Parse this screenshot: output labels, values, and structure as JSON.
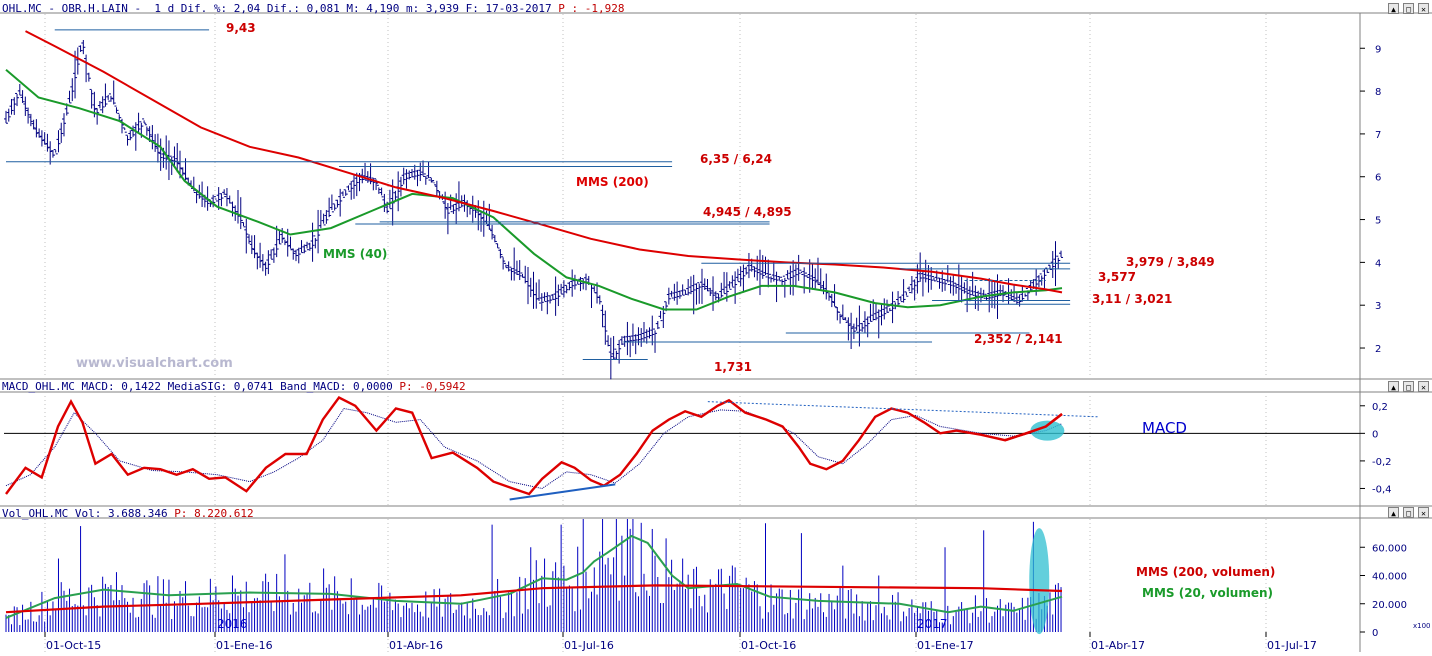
{
  "window": {
    "buttons": [
      "▲",
      "□",
      "✕"
    ]
  },
  "price_panel": {
    "header": {
      "prefix": "OHL.MC - OBR.H.LAIN -  1 d Dif. %: 2,04 Dif.: 0,081 M: 4,190 m: 3,939 F: 17-03-2017 ",
      "p_label": "P :",
      "p_value": "-1,928"
    },
    "watermark": "www.visualchart.com",
    "labels": {
      "high": "9,43",
      "r1": "6,35 / 6,24",
      "mms200": "MMS (200)",
      "r2": "4,945 / 4,895",
      "mms40": "MMS (40)",
      "r3": "3,979 / 3,849",
      "r4": "3,577",
      "r5": "3,11 / 3,021",
      "r6": "2,352 / 2,141",
      "low": "1,731"
    }
  },
  "macd_panel": {
    "header": {
      "prefix": "MACD_OHL.MC MACD: 0,1422 MediaSIG: 0,0741 Band_MACD: 0,0000 ",
      "p_label": "P:",
      "p_value": "-0,5942"
    },
    "title": "MACD"
  },
  "vol_panel": {
    "header": {
      "prefix": "Vol_OHL.MC Vol: 3.688.346 ",
      "p_label": "P:",
      "p_value": "8.220.612"
    },
    "mms200_label": "MMS (200, volumen)",
    "mms20_label": "MMS (20, volumen)",
    "multiplier": "x100",
    "year_labels": [
      "2016",
      "2017"
    ]
  },
  "colors": {
    "price_bars": "#000080",
    "mms200": "#dd0000",
    "mms40": "#1a9a2a",
    "levels": "#1f5fa0",
    "macd": "#dd0000",
    "signal": "#000080",
    "highlight": "#2fbfd0",
    "volume": "#0000c0"
  },
  "chart_data": [
    {
      "type": "line",
      "panel": "price",
      "y_ticks": [
        "9",
        "8",
        "7",
        "6",
        "5",
        "4",
        "3",
        "2"
      ],
      "ylim": [
        1.3,
        9.8
      ],
      "x_ticks": [
        "01-Oct-15",
        "01-Ene-16",
        "01-Abr-16",
        "01-Jul-16",
        "01-Oct-16",
        "01-Ene-17",
        "01-Abr-17",
        "01-Jul-17"
      ],
      "price_path": [
        [
          0,
          7.3
        ],
        [
          8,
          8.0
        ],
        [
          18,
          7.1
        ],
        [
          30,
          6.5
        ],
        [
          40,
          7.9
        ],
        [
          47,
          9.2
        ],
        [
          55,
          7.5
        ],
        [
          65,
          7.9
        ],
        [
          75,
          6.9
        ],
        [
          85,
          7.3
        ],
        [
          95,
          6.5
        ],
        [
          105,
          6.4
        ],
        [
          115,
          5.7
        ],
        [
          125,
          5.4
        ],
        [
          135,
          5.6
        ],
        [
          145,
          5.0
        ],
        [
          152,
          4.3
        ],
        [
          160,
          3.9
        ],
        [
          170,
          4.6
        ],
        [
          178,
          4.2
        ],
        [
          188,
          4.4
        ],
        [
          198,
          5.1
        ],
        [
          208,
          5.6
        ],
        [
          218,
          6.0
        ],
        [
          228,
          5.9
        ],
        [
          235,
          5.2
        ],
        [
          245,
          6.0
        ],
        [
          255,
          6.1
        ],
        [
          263,
          5.9
        ],
        [
          272,
          5.2
        ],
        [
          282,
          5.4
        ],
        [
          290,
          5.2
        ],
        [
          298,
          4.8
        ],
        [
          308,
          3.9
        ],
        [
          318,
          3.7
        ],
        [
          328,
          3.1
        ],
        [
          338,
          3.2
        ],
        [
          348,
          3.5
        ],
        [
          358,
          3.6
        ],
        [
          366,
          3.1
        ],
        [
          370,
          2.2
        ],
        [
          373,
          1.75
        ],
        [
          380,
          2.2
        ],
        [
          390,
          2.25
        ],
        [
          400,
          2.4
        ],
        [
          408,
          3.2
        ],
        [
          418,
          3.3
        ],
        [
          428,
          3.5
        ],
        [
          438,
          3.2
        ],
        [
          448,
          3.5
        ],
        [
          458,
          3.9
        ],
        [
          468,
          3.7
        ],
        [
          478,
          3.6
        ],
        [
          488,
          3.8
        ],
        [
          498,
          3.6
        ],
        [
          506,
          3.3
        ],
        [
          513,
          2.8
        ],
        [
          523,
          2.4
        ],
        [
          533,
          2.7
        ],
        [
          543,
          2.9
        ],
        [
          553,
          3.2
        ],
        [
          563,
          3.7
        ],
        [
          573,
          3.6
        ],
        [
          583,
          3.5
        ],
        [
          593,
          3.3
        ],
        [
          603,
          3.2
        ],
        [
          613,
          3.3
        ],
        [
          623,
          3.1
        ],
        [
          633,
          3.5
        ],
        [
          643,
          3.9
        ],
        [
          650,
          4.19
        ]
      ],
      "mms200": [
        [
          12,
          9.4
        ],
        [
          30,
          9.05
        ],
        [
          60,
          8.45
        ],
        [
          90,
          7.8
        ],
        [
          120,
          7.15
        ],
        [
          150,
          6.7
        ],
        [
          180,
          6.45
        ],
        [
          210,
          6.1
        ],
        [
          240,
          5.75
        ],
        [
          270,
          5.5
        ],
        [
          300,
          5.2
        ],
        [
          330,
          4.88
        ],
        [
          360,
          4.55
        ],
        [
          390,
          4.3
        ],
        [
          420,
          4.15
        ],
        [
          450,
          4.07
        ],
        [
          480,
          4.0
        ],
        [
          510,
          3.95
        ],
        [
          540,
          3.88
        ],
        [
          570,
          3.78
        ],
        [
          600,
          3.62
        ],
        [
          620,
          3.48
        ],
        [
          640,
          3.37
        ],
        [
          650,
          3.3
        ]
      ],
      "mms40": [
        [
          0,
          8.5
        ],
        [
          20,
          7.85
        ],
        [
          45,
          7.6
        ],
        [
          70,
          7.3
        ],
        [
          95,
          6.7
        ],
        [
          110,
          5.9
        ],
        [
          130,
          5.3
        ],
        [
          155,
          4.95
        ],
        [
          175,
          4.65
        ],
        [
          200,
          4.8
        ],
        [
          225,
          5.2
        ],
        [
          250,
          5.6
        ],
        [
          275,
          5.5
        ],
        [
          300,
          5.05
        ],
        [
          325,
          4.2
        ],
        [
          345,
          3.65
        ],
        [
          365,
          3.45
        ],
        [
          385,
          3.15
        ],
        [
          405,
          2.9
        ],
        [
          425,
          2.9
        ],
        [
          445,
          3.2
        ],
        [
          465,
          3.45
        ],
        [
          485,
          3.45
        ],
        [
          510,
          3.3
        ],
        [
          535,
          3.05
        ],
        [
          555,
          2.95
        ],
        [
          575,
          3.0
        ],
        [
          600,
          3.2
        ],
        [
          620,
          3.3
        ],
        [
          640,
          3.35
        ],
        [
          650,
          3.4
        ]
      ],
      "levels": [
        {
          "y": 9.43,
          "x0": 30,
          "x1": 125,
          "label_key": "high"
        },
        {
          "y": 6.35,
          "x0": 0,
          "x1": 410,
          "label_key": "r1"
        },
        {
          "y": 6.24,
          "x0": 205,
          "x1": 410
        },
        {
          "y": 4.945,
          "x0": 230,
          "x1": 470,
          "label_key": "r2"
        },
        {
          "y": 4.895,
          "x0": 215,
          "x1": 470
        },
        {
          "y": 3.979,
          "x0": 428,
          "x1": 655,
          "label_key": "r3"
        },
        {
          "y": 3.849,
          "x0": 550,
          "x1": 655
        },
        {
          "y": 3.577,
          "x0": 590,
          "x1": 640,
          "dashed": true,
          "label_key": "r4"
        },
        {
          "y": 3.11,
          "x0": 570,
          "x1": 655,
          "label_key": "r5"
        },
        {
          "y": 3.021,
          "x0": 590,
          "x1": 655
        },
        {
          "y": 2.352,
          "x0": 480,
          "x1": 630,
          "label_key": "r6"
        },
        {
          "y": 2.141,
          "x0": 380,
          "x1": 570
        },
        {
          "y": 1.731,
          "x0": 355,
          "x1": 395,
          "label_key": "low"
        }
      ]
    },
    {
      "type": "line",
      "panel": "macd",
      "y_ticks": [
        "0,2",
        "0",
        "-0,2",
        "-0,4"
      ],
      "ylim": [
        -0.52,
        0.3
      ],
      "macd": [
        [
          0,
          -0.44
        ],
        [
          12,
          -0.25
        ],
        [
          22,
          -0.32
        ],
        [
          32,
          0.05
        ],
        [
          40,
          0.23
        ],
        [
          47,
          0.08
        ],
        [
          55,
          -0.22
        ],
        [
          65,
          -0.15
        ],
        [
          75,
          -0.3
        ],
        [
          85,
          -0.25
        ],
        [
          95,
          -0.26
        ],
        [
          105,
          -0.3
        ],
        [
          115,
          -0.26
        ],
        [
          125,
          -0.33
        ],
        [
          135,
          -0.32
        ],
        [
          148,
          -0.42
        ],
        [
          160,
          -0.25
        ],
        [
          172,
          -0.15
        ],
        [
          185,
          -0.15
        ],
        [
          195,
          0.1
        ],
        [
          205,
          0.26
        ],
        [
          215,
          0.2
        ],
        [
          228,
          0.02
        ],
        [
          240,
          0.18
        ],
        [
          250,
          0.15
        ],
        [
          262,
          -0.18
        ],
        [
          275,
          -0.14
        ],
        [
          290,
          -0.25
        ],
        [
          300,
          -0.35
        ],
        [
          312,
          -0.4
        ],
        [
          322,
          -0.44
        ],
        [
          330,
          -0.33
        ],
        [
          342,
          -0.21
        ],
        [
          350,
          -0.25
        ],
        [
          360,
          -0.34
        ],
        [
          368,
          -0.38
        ],
        [
          378,
          -0.3
        ],
        [
          388,
          -0.15
        ],
        [
          398,
          0.02
        ],
        [
          408,
          0.1
        ],
        [
          418,
          0.16
        ],
        [
          428,
          0.12
        ],
        [
          438,
          0.2
        ],
        [
          445,
          0.24
        ],
        [
          455,
          0.15
        ],
        [
          468,
          0.1
        ],
        [
          478,
          0.05
        ],
        [
          488,
          -0.1
        ],
        [
          495,
          -0.22
        ],
        [
          505,
          -0.26
        ],
        [
          515,
          -0.2
        ],
        [
          525,
          -0.05
        ],
        [
          535,
          0.12
        ],
        [
          545,
          0.18
        ],
        [
          555,
          0.15
        ],
        [
          565,
          0.08
        ],
        [
          575,
          0.0
        ],
        [
          585,
          0.02
        ],
        [
          600,
          -0.01
        ],
        [
          615,
          -0.05
        ],
        [
          628,
          0.0
        ],
        [
          640,
          0.05
        ],
        [
          650,
          0.14
        ]
      ],
      "signal": [
        [
          0,
          -0.38
        ],
        [
          15,
          -0.3
        ],
        [
          30,
          -0.1
        ],
        [
          42,
          0.15
        ],
        [
          55,
          0.0
        ],
        [
          70,
          -0.2
        ],
        [
          90,
          -0.27
        ],
        [
          110,
          -0.28
        ],
        [
          130,
          -0.3
        ],
        [
          150,
          -0.35
        ],
        [
          165,
          -0.28
        ],
        [
          180,
          -0.18
        ],
        [
          195,
          -0.05
        ],
        [
          208,
          0.18
        ],
        [
          222,
          0.15
        ],
        [
          240,
          0.08
        ],
        [
          255,
          0.1
        ],
        [
          270,
          -0.1
        ],
        [
          290,
          -0.2
        ],
        [
          310,
          -0.35
        ],
        [
          330,
          -0.4
        ],
        [
          345,
          -0.28
        ],
        [
          360,
          -0.3
        ],
        [
          375,
          -0.36
        ],
        [
          390,
          -0.22
        ],
        [
          405,
          0.0
        ],
        [
          420,
          0.12
        ],
        [
          440,
          0.17
        ],
        [
          455,
          0.16
        ],
        [
          470,
          0.09
        ],
        [
          485,
          0.0
        ],
        [
          500,
          -0.17
        ],
        [
          515,
          -0.22
        ],
        [
          530,
          -0.08
        ],
        [
          545,
          0.1
        ],
        [
          560,
          0.13
        ],
        [
          575,
          0.05
        ],
        [
          600,
          0.0
        ],
        [
          620,
          -0.02
        ],
        [
          640,
          0.02
        ],
        [
          650,
          0.07
        ]
      ],
      "trend_up": [
        [
          310,
          -0.48
        ],
        [
          375,
          -0.37
        ]
      ],
      "trend_down": [
        [
          432,
          0.23
        ],
        [
          672,
          0.12
        ]
      ]
    },
    {
      "type": "bar",
      "panel": "volume",
      "y_ticks": [
        "60.000",
        "40.000",
        "20.000",
        "0"
      ],
      "ylim": [
        0,
        80000
      ],
      "mms200": [
        [
          0,
          14000
        ],
        [
          60,
          18000
        ],
        [
          120,
          20000
        ],
        [
          200,
          23000
        ],
        [
          280,
          26000
        ],
        [
          330,
          31000
        ],
        [
          400,
          33000
        ],
        [
          500,
          32000
        ],
        [
          600,
          31000
        ],
        [
          650,
          29000
        ]
      ],
      "mms20": [
        [
          0,
          10000
        ],
        [
          30,
          24000
        ],
        [
          60,
          30000
        ],
        [
          100,
          26000
        ],
        [
          150,
          28000
        ],
        [
          200,
          27000
        ],
        [
          240,
          22000
        ],
        [
          280,
          20000
        ],
        [
          310,
          27000
        ],
        [
          330,
          38000
        ],
        [
          345,
          37000
        ],
        [
          355,
          42000
        ],
        [
          362,
          50000
        ],
        [
          370,
          56000
        ],
        [
          385,
          68000
        ],
        [
          395,
          63000
        ],
        [
          410,
          40000
        ],
        [
          420,
          31000
        ],
        [
          450,
          34000
        ],
        [
          470,
          25000
        ],
        [
          500,
          22000
        ],
        [
          550,
          20000
        ],
        [
          580,
          14000
        ],
        [
          600,
          18000
        ],
        [
          620,
          15000
        ],
        [
          650,
          25000
        ]
      ],
      "spikes": [
        [
          32,
          52000
        ],
        [
          46,
          75000
        ],
        [
          88,
          33000
        ],
        [
          140,
          40000
        ],
        [
          172,
          55000
        ],
        [
          195,
          45000
        ],
        [
          212,
          38000
        ],
        [
          300,
          76000
        ],
        [
          323,
          60000
        ],
        [
          332,
          52000
        ],
        [
          342,
          76000
        ],
        [
          356,
          80000
        ],
        [
          368,
          80000
        ],
        [
          375,
          80000
        ],
        [
          385,
          73000
        ],
        [
          400,
          54000
        ],
        [
          416,
          52000
        ],
        [
          468,
          77000
        ],
        [
          490,
          70000
        ],
        [
          515,
          47000
        ],
        [
          538,
          40000
        ],
        [
          578,
          60000
        ],
        [
          601,
          72000
        ],
        [
          632,
          78000
        ]
      ]
    }
  ]
}
